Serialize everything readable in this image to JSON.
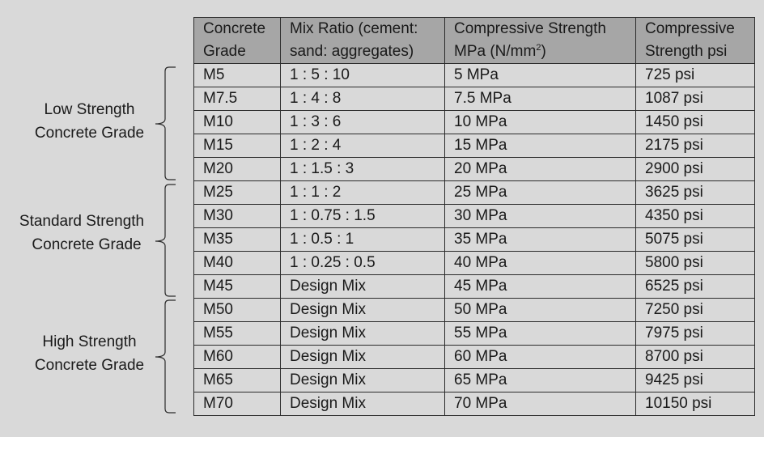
{
  "table": {
    "headers": [
      [
        "Concrete",
        "Grade"
      ],
      [
        "Mix Ratio (cement:",
        "sand: aggregates)"
      ],
      [
        "Compressive Strength",
        "MPa (N/mm",
        "2",
        ")"
      ],
      [
        "Compressive",
        "Strength psi"
      ]
    ],
    "rows": [
      [
        "M5",
        "1 : 5 : 10",
        "5 MPa",
        "725 psi"
      ],
      [
        "M7.5",
        "1 : 4 : 8",
        "7.5 MPa",
        "1087 psi"
      ],
      [
        "M10",
        "1 : 3 : 6",
        "10 MPa",
        "1450 psi"
      ],
      [
        "M15",
        "1 : 2 : 4",
        "15 MPa",
        "2175 psi"
      ],
      [
        "M20",
        "1 : 1.5 : 3",
        "20 MPa",
        "2900 psi"
      ],
      [
        "M25",
        "1 : 1 : 2",
        "25 MPa",
        "3625 psi"
      ],
      [
        "M30",
        "1 : 0.75 : 1.5",
        "30 MPa",
        "4350 psi"
      ],
      [
        "M35",
        "1 : 0.5 : 1",
        "35 MPa",
        "5075 psi"
      ],
      [
        "M40",
        "1 : 0.25 : 0.5",
        "40 MPa",
        "5800 psi"
      ],
      [
        "M45",
        "Design Mix",
        "45 MPa",
        "6525 psi"
      ],
      [
        "M50",
        "Design Mix",
        "50 MPa",
        "7250 psi"
      ],
      [
        "M55",
        "Design Mix",
        "55 MPa",
        "7975 psi"
      ],
      [
        "M60",
        "Design Mix",
        "60 MPa",
        "8700 psi"
      ],
      [
        "M65",
        "Design Mix",
        "65 MPa",
        "9425 psi"
      ],
      [
        "M70",
        "Design Mix",
        "70 MPa",
        "10150 psi"
      ]
    ]
  },
  "groups": [
    {
      "line1": "Low Strength",
      "line2": "Concrete Grade"
    },
    {
      "line1": "Standard Strength",
      "line2": "Concrete Grade"
    },
    {
      "line1": "High Strength",
      "line2": "Concrete Grade"
    }
  ],
  "colors": {
    "background": "#d9d9d9",
    "header_fill": "#a6a6a6",
    "border": "#2b2b2b"
  }
}
